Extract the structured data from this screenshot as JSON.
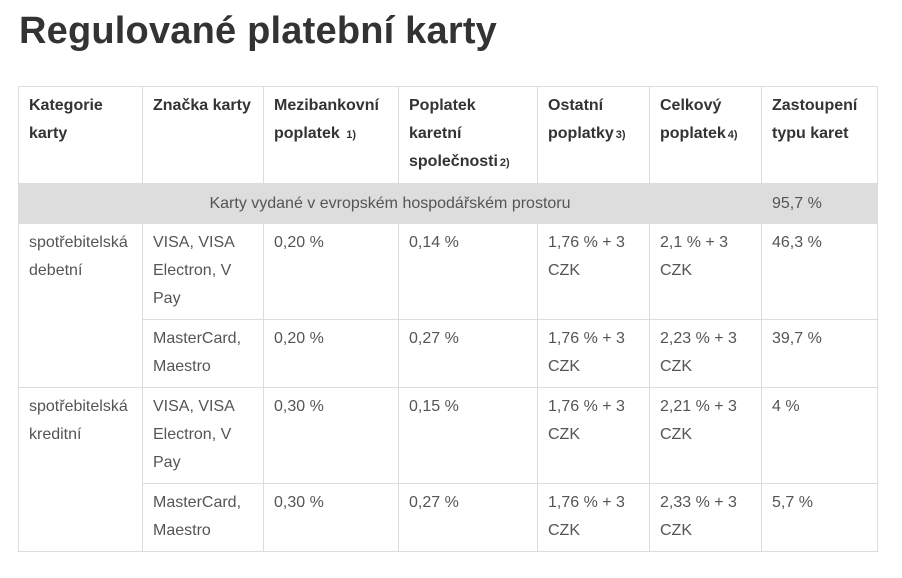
{
  "title": "Regulované platební karty",
  "table": {
    "headers": [
      {
        "label": "Kategorie karty",
        "note": ""
      },
      {
        "label": "Značka karty",
        "note": ""
      },
      {
        "label": "Mezibankovní poplatek",
        "note": "1)"
      },
      {
        "label": "Poplatek karetní společnosti",
        "note": "2)"
      },
      {
        "label": "Ostatní poplatky",
        "note": "3)"
      },
      {
        "label": "Celkový poplatek",
        "note": "4)"
      },
      {
        "label": "Zastoupení typu karet",
        "note": ""
      }
    ],
    "region_row": {
      "label": "Karty vydané v evropském hospodářském prostoru",
      "share": "95,7 %"
    },
    "groups": [
      {
        "category": "spotřebitelská debetní",
        "rows": [
          {
            "brand": "VISA, VISA Electron, V Pay",
            "interbank": "0,20 %",
            "card_company": "0,14 %",
            "other": "1,76 % + 3 CZK",
            "total": "2,1 % + 3 CZK",
            "share": "46,3 %"
          },
          {
            "brand": "MasterCard, Maestro",
            "interbank": "0,20 %",
            "card_company": "0,27 %",
            "other": "1,76 % + 3 CZK",
            "total": "2,23 % + 3 CZK",
            "share": "39,7 %"
          }
        ]
      },
      {
        "category": "spotřebitelská kreditní",
        "rows": [
          {
            "brand": "VISA, VISA Electron, V Pay",
            "interbank": "0,30 %",
            "card_company": "0,15 %",
            "other": "1,76 % + 3 CZK",
            "total": "2,21 % + 3 CZK",
            "share": "4 %"
          },
          {
            "brand": "MasterCard, Maestro",
            "interbank": "0,30 %",
            "card_company": "0,27 %",
            "other": "1,76 % + 3 CZK",
            "total": "2,33 % + 3 CZK",
            "share": "5,7 %"
          }
        ]
      }
    ]
  }
}
